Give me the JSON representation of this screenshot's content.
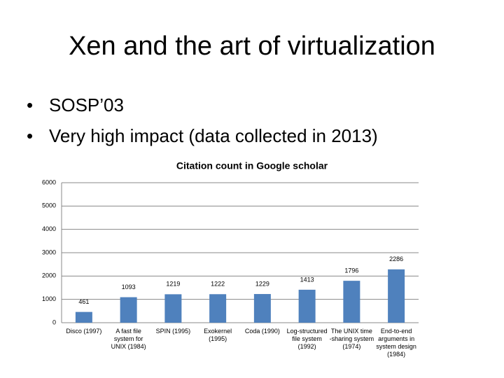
{
  "slide": {
    "title": "Xen and the art of virtualization",
    "bullets": [
      "SOSP’03",
      "Very high impact (data collected in 2013)"
    ]
  },
  "chart_data": {
    "type": "bar",
    "title": "Citation count  in Google scholar",
    "categories": [
      "Disco (1997)",
      "A fast file system for UNIX (1984)",
      "SPIN (1995)",
      "Exokernel (1995)",
      "Coda (1990)",
      "Log-structured file system (1992)",
      "The UNIX time -sharing system (1974)",
      "End-to-end arguments in system design (1984)"
    ],
    "values": [
      461,
      1093,
      1219,
      1222,
      1229,
      1413,
      1796,
      2286
    ],
    "color": "#4f81bd",
    "ylim": [
      0,
      6000
    ],
    "yticks": [
      0,
      1000,
      2000,
      3000,
      4000,
      5000,
      6000
    ],
    "grid": true
  }
}
